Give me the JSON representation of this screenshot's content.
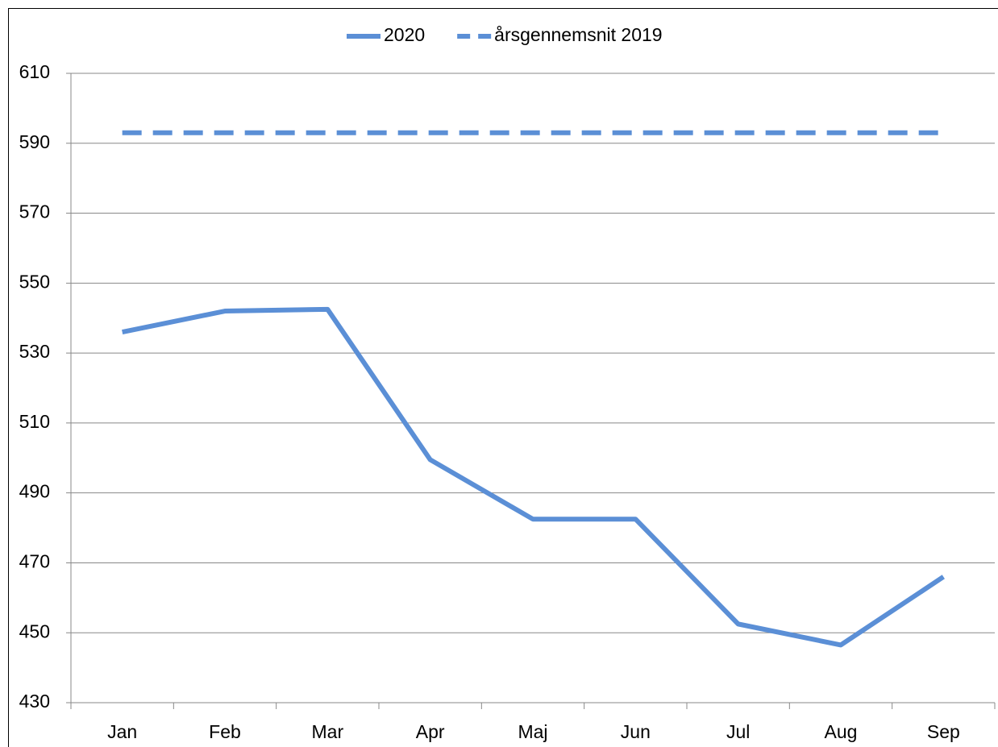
{
  "chart_data": {
    "type": "line",
    "categories": [
      "Jan",
      "Feb",
      "Mar",
      "Apr",
      "Maj",
      "Jun",
      "Jul",
      "Aug",
      "Sep"
    ],
    "series": [
      {
        "name": "2020",
        "color": "#5b8fd6",
        "dash": false,
        "values": [
          536,
          542,
          542.5,
          499.5,
          482.5,
          482.5,
          452.5,
          446.5,
          466
        ]
      },
      {
        "name": "årsgennemsnit 2019",
        "color": "#5b8fd6",
        "dash": true,
        "values": [
          593,
          593,
          593,
          593,
          593,
          593,
          593,
          593,
          593
        ]
      }
    ],
    "ylim": [
      430,
      610
    ],
    "yticks": [
      430,
      450,
      470,
      490,
      510,
      530,
      550,
      570,
      590,
      610
    ],
    "grid": true,
    "legend": "top"
  }
}
